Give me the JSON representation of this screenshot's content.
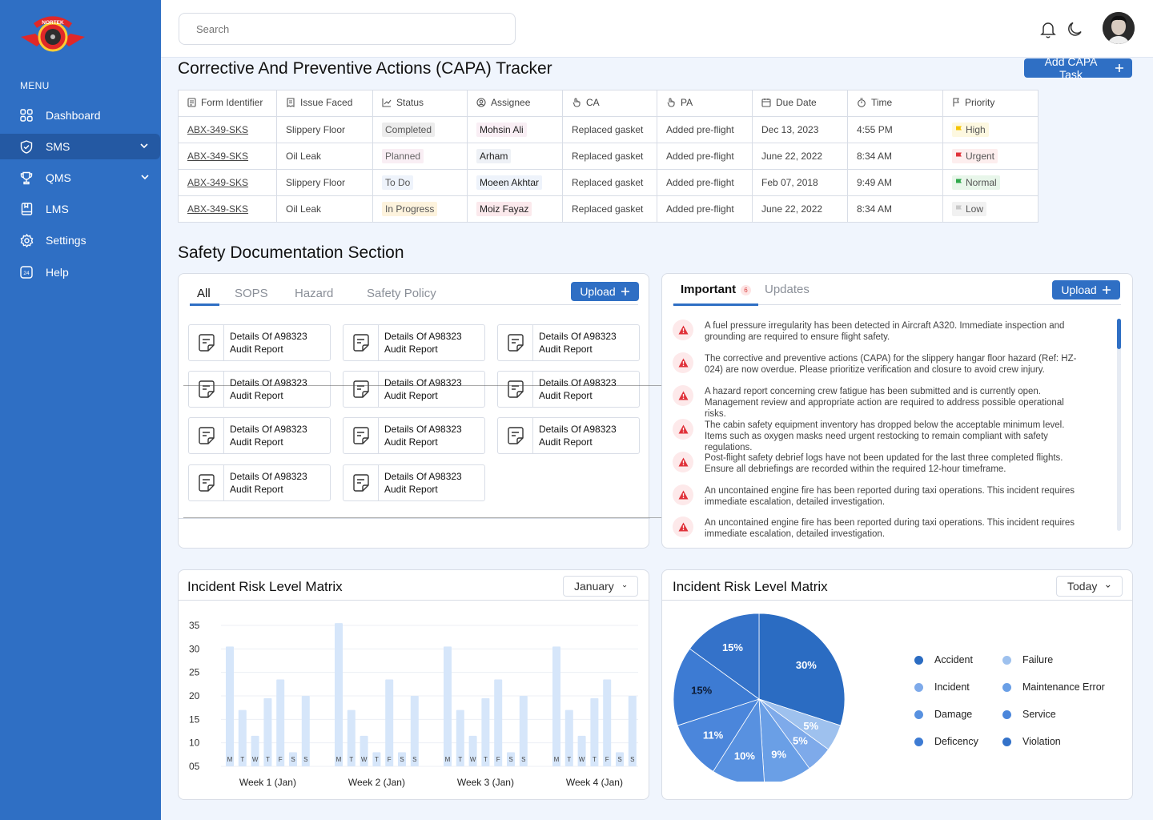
{
  "brand": {
    "logo_text": "NORTEK"
  },
  "sidebar": {
    "menu_label": "MENU",
    "items": [
      {
        "label": "Dashboard"
      },
      {
        "label": "SMS"
      },
      {
        "label": "QMS"
      },
      {
        "label": "LMS"
      },
      {
        "label": "Settings"
      },
      {
        "label": "Help"
      }
    ]
  },
  "topbar": {
    "search_placeholder": "Search"
  },
  "capa": {
    "title": "Corrective And Preventive Actions (CAPA) Tracker",
    "add_button": "Add CAPA Task",
    "columns": [
      "Form Identifier",
      "Issue Faced",
      "Status",
      "Assignee",
      "CA",
      "PA",
      "Due Date",
      "Time",
      "Priority"
    ],
    "rows": [
      {
        "id": "ABX-349-SKS",
        "issue": "Slippery Floor",
        "status": "Completed",
        "assignee": "Mohsin Ali",
        "ca": "Replaced gasket",
        "pa": "Added pre-flight",
        "due": "Dec 13, 2023",
        "time": "4:55 PM",
        "priority": "High"
      },
      {
        "id": "ABX-349-SKS",
        "issue": "Oil Leak",
        "status": "Planned",
        "assignee": "Arham",
        "ca": "Replaced gasket",
        "pa": "Added pre-flight",
        "due": "June 22, 2022",
        "time": "8:34 AM",
        "priority": "Urgent"
      },
      {
        "id": "ABX-349-SKS",
        "issue": "Slippery Floor",
        "status": "To Do",
        "assignee": "Moeen Akhtar",
        "ca": "Replaced gasket",
        "pa": "Added pre-flight",
        "due": "Feb 07, 2018",
        "time": "9:49 AM",
        "priority": "Normal"
      },
      {
        "id": "ABX-349-SKS",
        "issue": "Oil Leak",
        "status": "In Progress",
        "assignee": "Moiz Fayaz",
        "ca": "Replaced gasket",
        "pa": "Added pre-flight",
        "due": "June 22, 2022",
        "time": "8:34 AM",
        "priority": "Low"
      }
    ]
  },
  "safety": {
    "title": "Safety Documentation Section",
    "tabs": [
      "All",
      "SOPS",
      "Hazard",
      "Safety Policy"
    ],
    "upload_label": "Upload",
    "doc_line1": "Details Of A98323",
    "doc_line2": "Audit Report"
  },
  "notifications": {
    "tabs": [
      "Important",
      "Updates"
    ],
    "badge": "6",
    "upload_label": "Upload",
    "items": [
      "A fuel pressure irregularity has been detected in Aircraft A320. Immediate inspection and grounding are required to ensure flight safety.",
      "The corrective and preventive actions (CAPA) for the slippery hangar floor hazard (Ref: HZ-024) are now overdue. Please prioritize verification and closure to avoid crew injury.",
      "A hazard report concerning crew fatigue has been submitted and is currently open. Management review and appropriate action are required to address possible operational risks.",
      "The cabin safety equipment inventory has dropped below the acceptable minimum level. Items such as oxygen masks need urgent restocking to remain compliant with safety regulations.",
      "Post-flight safety debrief logs have not been updated for the last three completed flights. Ensure all debriefings are recorded within the required 12-hour timeframe.",
      "An uncontained engine fire has been reported during taxi operations. This incident requires immediate escalation, detailed investigation.",
      "An uncontained engine fire has been reported during taxi operations. This incident requires immediate escalation, detailed investigation."
    ]
  },
  "bar_card": {
    "title": "Incident Risk Level Matrix",
    "dropdown": "January"
  },
  "pie_card": {
    "title": "Incident Risk Level Matrix",
    "dropdown": "Today"
  },
  "chart_data": [
    {
      "type": "bar",
      "title": "Incident Risk Level Matrix",
      "ylim": [
        5,
        35
      ],
      "yticks": [
        "35",
        "30",
        "25",
        "20",
        "15",
        "10",
        "05"
      ],
      "day_labels": [
        "M",
        "T",
        "W",
        "T",
        "F",
        "S",
        "S"
      ],
      "groups": [
        "Week 1 (Jan)",
        "Week 2 (Jan)",
        "Week 3 (Jan)",
        "Week 4 (Jan)"
      ],
      "series": [
        {
          "name": "Week 1 (Jan)",
          "values": [
            30.5,
            17,
            11.5,
            19.5,
            23.5,
            8,
            20
          ]
        },
        {
          "name": "Week 2 (Jan)",
          "values": [
            35.5,
            17,
            11.5,
            8,
            23.5,
            8,
            20
          ]
        },
        {
          "name": "Week 3 (Jan)",
          "values": [
            30.5,
            17,
            11.5,
            19.5,
            23.5,
            8,
            20
          ]
        },
        {
          "name": "Week 4 (Jan)",
          "values": [
            30.5,
            17,
            11.5,
            19.5,
            23.5,
            8,
            20
          ]
        }
      ]
    },
    {
      "type": "pie",
      "title": "Incident Risk Level Matrix",
      "slices": [
        {
          "label": "Accident",
          "value": 30,
          "color": "#2b6cc2"
        },
        {
          "label": "Failure",
          "value": 5,
          "color": "#9ec1ee"
        },
        {
          "label": "Incident",
          "value": 5,
          "color": "#7eaaea"
        },
        {
          "label": "Maintenance Error",
          "value": 9,
          "color": "#6a9fe6"
        },
        {
          "label": "Damage",
          "value": 10,
          "color": "#5891e0"
        },
        {
          "label": "Service",
          "value": 11,
          "color": "#4b86db"
        },
        {
          "label": "Deficency",
          "value": 15,
          "color": "#3d7bd3"
        },
        {
          "label": "Violation",
          "value": 15,
          "color": "#3472c9"
        }
      ],
      "legend": [
        "Accident",
        "Failure",
        "Incident",
        "Maintenance Error",
        "Damage",
        "Service",
        "Deficency",
        "Violation"
      ]
    }
  ]
}
